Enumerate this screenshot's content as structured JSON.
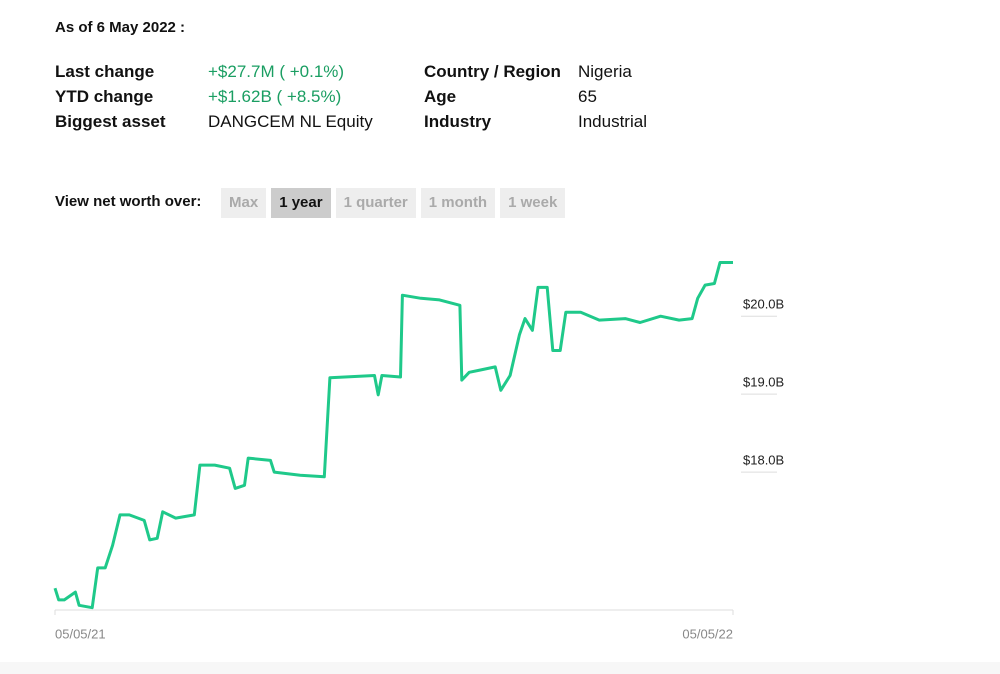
{
  "header": {
    "as_of": "As of 6 May 2022 :"
  },
  "stats": {
    "left": [
      {
        "label": "Last change",
        "value": "+$27.7M ( +0.1%)"
      },
      {
        "label": "YTD change",
        "value": "+$1.62B ( +8.5%)"
      },
      {
        "label": "Biggest asset",
        "value": "DANGCEM NL Equity"
      }
    ],
    "right": [
      {
        "label": "Country / Region",
        "value": "Nigeria"
      },
      {
        "label": "Age",
        "value": "65"
      },
      {
        "label": "Industry",
        "value": "Industrial"
      }
    ]
  },
  "range_selector": {
    "label": "View net worth over:",
    "options": [
      "Max",
      "1 year",
      "1 quarter",
      "1 month",
      "1 week"
    ],
    "selected": 1
  },
  "chart_data": {
    "type": "line",
    "color": "#1fc98a",
    "x": [
      "05/05/21",
      "05/07/21",
      "05/10/21",
      "05/16/21",
      "05/18/21",
      "05/25/21",
      "05/28/21",
      "06/01/21",
      "06/05/21",
      "06/09/21",
      "06/14/21",
      "06/22/21",
      "06/25/21",
      "06/29/21",
      "07/02/21",
      "07/09/21",
      "07/19/21",
      "07/22/21",
      "07/30/21",
      "08/07/21",
      "08/10/21",
      "08/15/21",
      "08/17/21",
      "08/29/21",
      "08/31/21",
      "09/14/21",
      "09/27/21",
      "09/30/21",
      "10/08/21",
      "10/24/21",
      "10/26/21",
      "10/28/21",
      "11/07/21",
      "11/08/21",
      "11/18/21",
      "11/28/21",
      "12/09/21",
      "12/10/21",
      "12/14/21",
      "12/20/21",
      "12/28/21",
      "12/31/21",
      "01/05/22",
      "01/10/22",
      "01/13/22",
      "01/17/22",
      "01/20/22",
      "01/25/22",
      "01/28/22",
      "02/01/22",
      "02/04/22",
      "02/12/22",
      "02/22/22",
      "03/08/22",
      "03/16/22",
      "03/27/22",
      "04/06/22",
      "04/13/22",
      "04/16/22",
      "04/20/22",
      "04/25/22",
      "04/28/22",
      "05/05/22"
    ],
    "values": [
      16.51,
      16.36,
      16.36,
      16.46,
      16.29,
      16.26,
      16.77,
      16.77,
      17.06,
      17.45,
      17.45,
      17.38,
      17.13,
      17.15,
      17.49,
      17.41,
      17.45,
      18.09,
      18.09,
      18.05,
      17.79,
      17.83,
      18.18,
      18.15,
      18.0,
      17.96,
      17.94,
      19.21,
      19.22,
      19.24,
      18.99,
      19.24,
      19.22,
      20.27,
      20.23,
      20.21,
      20.14,
      19.18,
      19.28,
      19.31,
      19.35,
      19.05,
      19.24,
      19.76,
      19.97,
      19.82,
      20.37,
      20.37,
      19.56,
      19.56,
      20.05,
      20.05,
      19.95,
      19.97,
      19.92,
      20.0,
      19.95,
      19.97,
      20.23,
      20.4,
      20.42,
      20.69,
      20.69
    ],
    "xlim": [
      "05/05/21",
      "05/05/22"
    ],
    "xticks": [
      "05/05/21",
      "05/05/22"
    ],
    "ylim": [
      16.23,
      20.85
    ],
    "yticks": [
      {
        "value": 18,
        "label": "$18.0B"
      },
      {
        "value": 19,
        "label": "$19.0B"
      },
      {
        "value": 20,
        "label": "$20.0B"
      }
    ]
  }
}
